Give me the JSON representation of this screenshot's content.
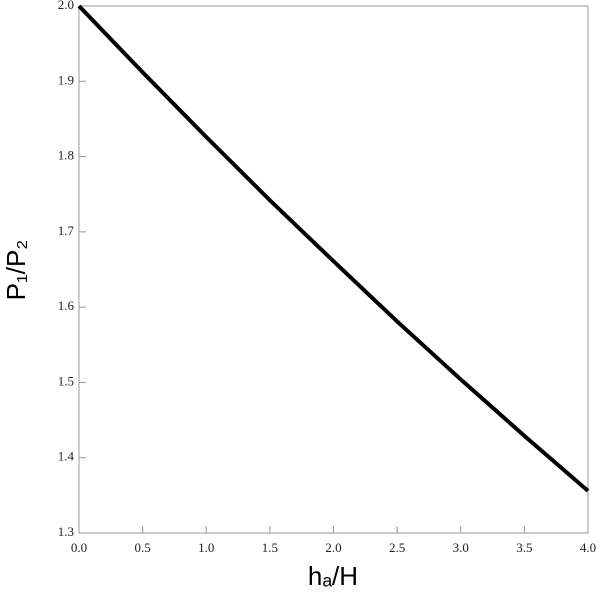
{
  "chart_data": {
    "type": "line",
    "x_label": "hₐ/H",
    "y_label": "P₁/P₂",
    "x": [
      0,
      0.5,
      1.0,
      1.5,
      2.0,
      2.5,
      3.0,
      3.5,
      4.0
    ],
    "series": [
      {
        "color": "#000000",
        "values": [
          2.0,
          1.912,
          1.826,
          1.742,
          1.661,
          1.581,
          1.504,
          1.429,
          1.356
        ]
      }
    ],
    "xlim": [
      0,
      4
    ],
    "ylim": [
      1.3,
      2.0
    ],
    "xticks": [
      {
        "value": 0,
        "label": "0.0"
      },
      0.5,
      {
        "value": 1,
        "label": "1.0"
      },
      1.5,
      {
        "value": 2,
        "label": "2.0"
      },
      2.5,
      {
        "value": 3,
        "label": "3.0"
      },
      3.5,
      {
        "value": 4,
        "label": "4.0"
      }
    ],
    "yticks": [
      1.3,
      1.4,
      1.5,
      1.6,
      1.7,
      1.8,
      1.9,
      {
        "value": 2,
        "label": "2.0"
      }
    ]
  }
}
